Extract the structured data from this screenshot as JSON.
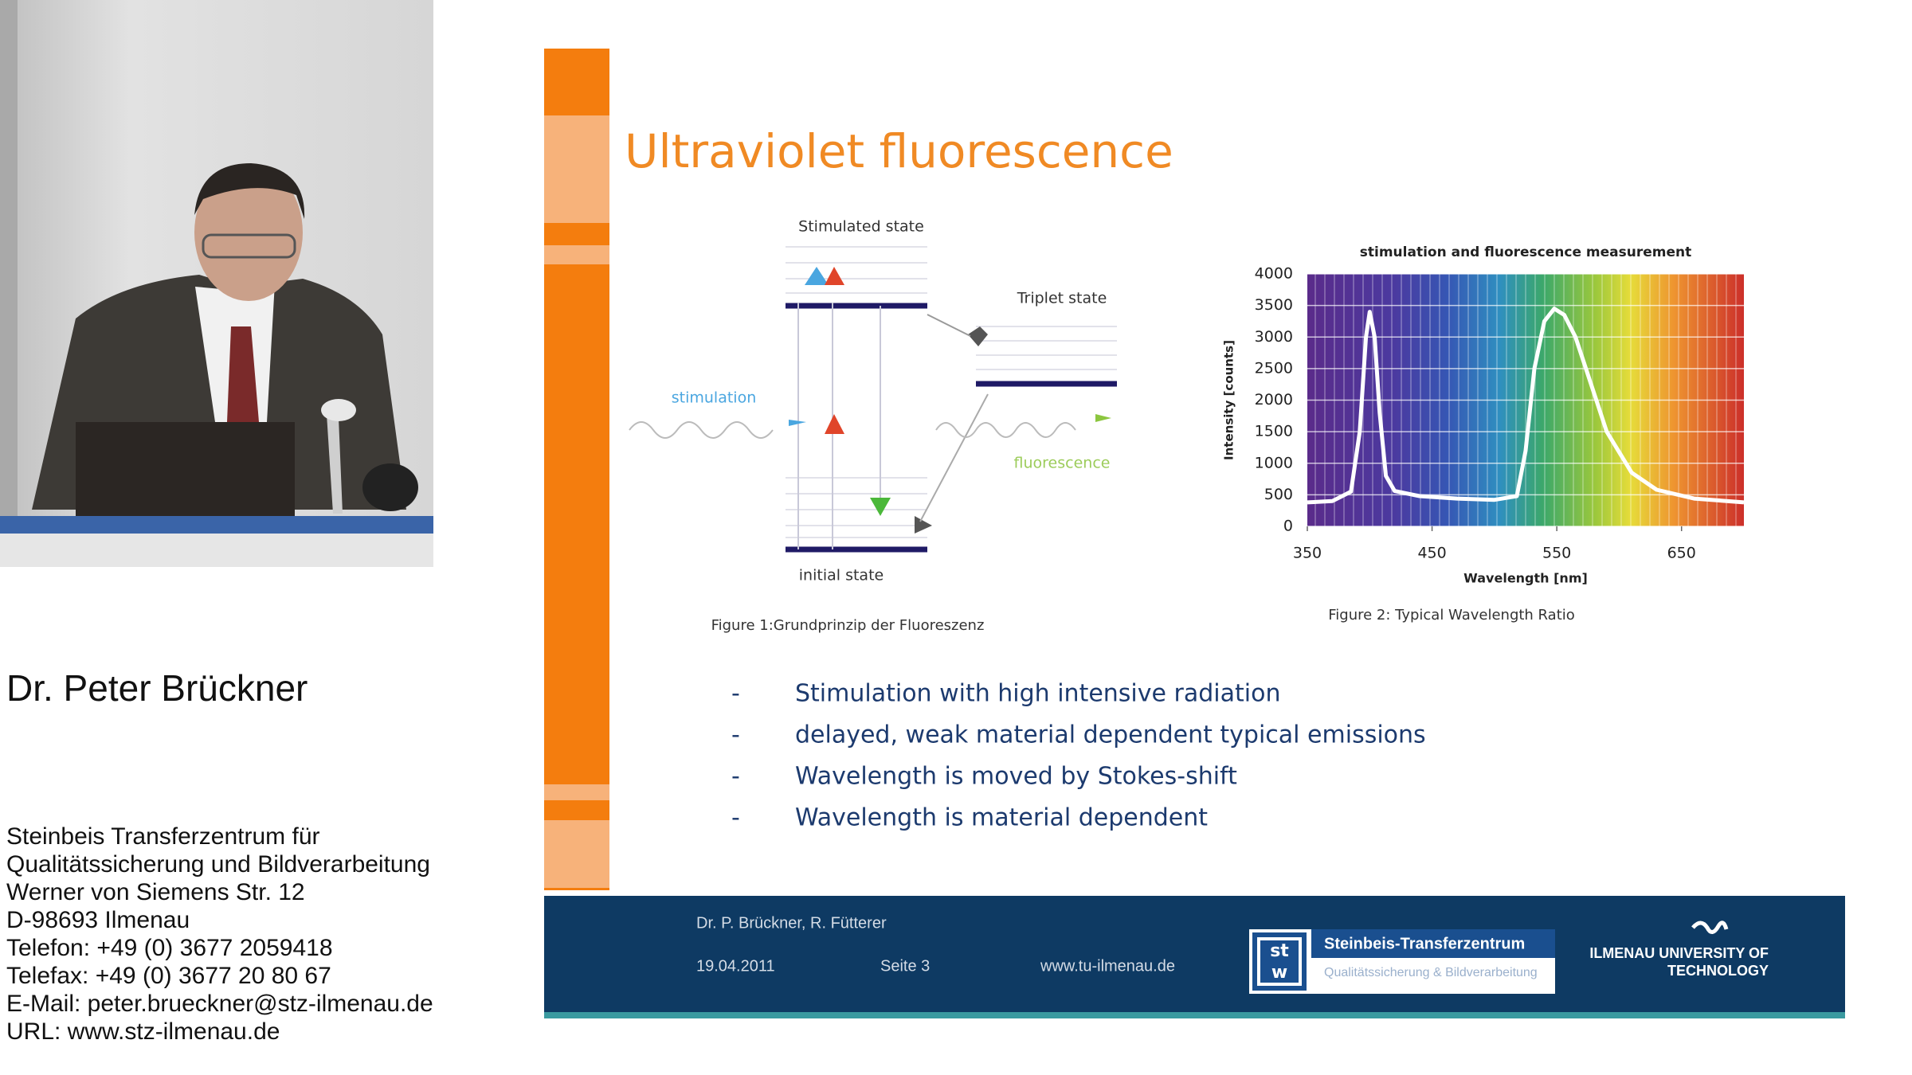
{
  "speaker": {
    "name": "Dr. Peter Brückner",
    "address": [
      "Steinbeis Transferzentrum für",
      "Qualitätssicherung und Bildverarbeitung",
      "Werner von Siemens Str. 12",
      "D-98693 Ilmenau",
      "Telefon: +49 (0) 3677 2059418",
      "Telefax: +49 (0) 3677 20 80 67",
      "E-Mail: peter.brueckner@stz-ilmenau.de",
      "URL: www.stz-ilmenau.de"
    ]
  },
  "slide": {
    "title": "Ultraviolet fluorescence",
    "figure1": {
      "labels": {
        "stimulated_state": "Stimulated state",
        "triplet_state": "Triplet state",
        "stimulation": "stimulation",
        "fluorescence": "fluorescence",
        "initial_state": "initial state"
      },
      "caption": "Figure 1:Grundprinzip der Fluoreszenz"
    },
    "figure2": {
      "chart": {
        "type": "line",
        "title": "stimulation and fluorescence measurement",
        "x_label": "Wavelength [nm]",
        "y_label": "Intensity [counts]",
        "x": [
          350,
          370,
          385,
          392,
          397,
          400,
          404,
          408,
          413,
          420,
          440,
          470,
          500,
          518,
          525,
          532,
          540,
          548,
          556,
          565,
          575,
          590,
          610,
          630,
          660,
          700
        ],
        "values": [
          380,
          400,
          550,
          1500,
          3000,
          3400,
          3000,
          1800,
          800,
          560,
          480,
          440,
          420,
          480,
          1200,
          2500,
          3250,
          3450,
          3350,
          3000,
          2400,
          1500,
          850,
          580,
          440,
          380
        ],
        "color": "#ffffff",
        "xlim": [
          350,
          700
        ],
        "ylim": [
          0,
          4000
        ],
        "xticks": [
          350,
          450,
          550,
          650
        ],
        "yticks": [
          0,
          500,
          1000,
          1500,
          2000,
          2500,
          3000,
          3500,
          4000
        ],
        "grid": true
      },
      "caption": "Figure 2: Typical Wavelength Ratio"
    },
    "bullet_marker": "-",
    "bullets": [
      "Stimulation with high intensive radiation",
      "delayed, weak material dependent typical emissions",
      "Wavelength is moved by Stokes-shift",
      "Wavelength is material dependent"
    ]
  },
  "footer": {
    "authors": "Dr. P. Brückner, R. Fütterer",
    "date": "19.04.2011",
    "page": "Seite 3",
    "url": "www.tu-ilmenau.de",
    "logo_letters": [
      "st",
      "w"
    ],
    "logo_name": "Steinbeis-Transferzentrum",
    "logo_sub": "Qualitätssicherung & Bildverarbeitung",
    "university": [
      "ILMENAU UNIVERSITY OF",
      "TECHNOLOGY"
    ]
  }
}
